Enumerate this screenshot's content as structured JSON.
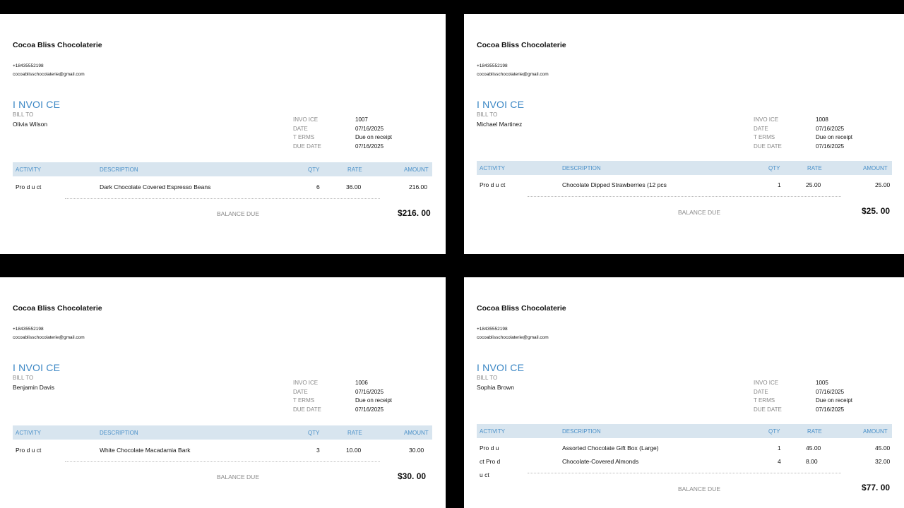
{
  "common": {
    "company": "Cocoa Bliss Chocolaterie",
    "phone": "+18435552198",
    "email": "cocoablisschocolaterie@gmail.com",
    "title": "I NVOI CE",
    "bill_to_label": "BILL TO",
    "meta_labels": [
      "INVO ICE",
      "DATE",
      "T ERMS",
      "DUE DATE"
    ],
    "columns": {
      "activity": "ACTIVITY",
      "description": "DESCRIPTION",
      "qty": "QTY",
      "rate": "RATE",
      "amount": "AMOUNT"
    },
    "balance_label": "BALANCE DUE"
  },
  "invoices": [
    {
      "client": "Olivia Wilson",
      "meta_values": [
        "1007",
        "07/16/2025",
        "Due on receipt",
        "07/16/2025"
      ],
      "items": [
        {
          "activity": "Pro d u ct",
          "description": "Dark Chocolate Covered Espresso Beans",
          "qty": "6",
          "rate": "36.00",
          "amount": "216.00"
        }
      ],
      "balance": "$216. 00"
    },
    {
      "client": "Michael Martinez",
      "meta_values": [
        "1008",
        "07/16/2025",
        "Due on receipt",
        "07/16/2025"
      ],
      "items": [
        {
          "activity": "Pro d u ct",
          "description": "Chocolate Dipped Strawberries (12 pcs",
          "qty": "1",
          "rate": "25.00",
          "amount": "25.00"
        }
      ],
      "balance": "$25. 00"
    },
    {
      "client": "Benjamin Davis",
      "meta_values": [
        "1006",
        "07/16/2025",
        "Due on receipt",
        "07/16/2025"
      ],
      "items": [
        {
          "activity": "Pro d u ct",
          "description": "White Chocolate Macadamia Bark",
          "qty": "3",
          "rate": "10.00",
          "amount": "30.00"
        }
      ],
      "balance": "$30. 00"
    },
    {
      "client": "Sophia Brown",
      "meta_values": [
        "1005",
        "07/16/2025",
        "Due on receipt",
        "07/16/2025"
      ],
      "items": [
        {
          "activity": "Pro d u",
          "description": "Assorted Chocolate Gift Box (Large)",
          "qty": "1",
          "rate": "45.00",
          "amount": "45.00"
        },
        {
          "activity": "ct Pro d",
          "description": "Chocolate-Covered Almonds",
          "qty": "4",
          "rate": "8.00",
          "amount": "32.00"
        },
        {
          "activity": "u ct"
        }
      ],
      "balance": "$77. 00"
    }
  ]
}
